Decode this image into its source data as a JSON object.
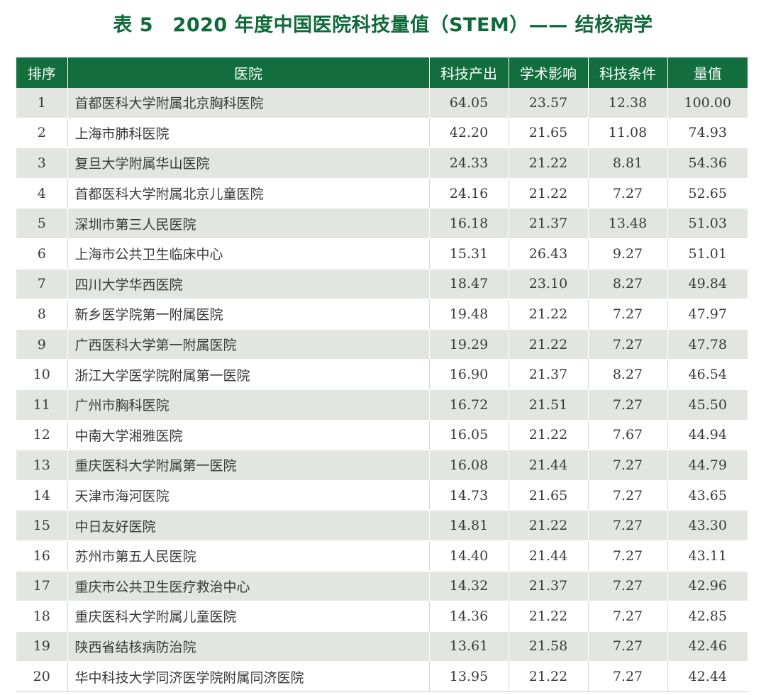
{
  "title": "表 5　2020 年度中国医院科技量值（STEM）—— 结核病学",
  "headers": {
    "rank": "排序",
    "hospital": "医院",
    "output": "科技产出",
    "impact": "学术影响",
    "condition": "科技条件",
    "value": "量值"
  },
  "rows": [
    {
      "rank": "1",
      "hospital": "首都医科大学附属北京胸科医院",
      "output": "64.05",
      "impact": "23.57",
      "condition": "12.38",
      "value": "100.00"
    },
    {
      "rank": "2",
      "hospital": "上海市肺科医院",
      "output": "42.20",
      "impact": "21.65",
      "condition": "11.08",
      "value": "74.93"
    },
    {
      "rank": "3",
      "hospital": "复旦大学附属华山医院",
      "output": "24.33",
      "impact": "21.22",
      "condition": "8.81",
      "value": "54.36"
    },
    {
      "rank": "4",
      "hospital": "首都医科大学附属北京儿童医院",
      "output": "24.16",
      "impact": "21.22",
      "condition": "7.27",
      "value": "52.65"
    },
    {
      "rank": "5",
      "hospital": "深圳市第三人民医院",
      "output": "16.18",
      "impact": "21.37",
      "condition": "13.48",
      "value": "51.03"
    },
    {
      "rank": "6",
      "hospital": "上海市公共卫生临床中心",
      "output": "15.31",
      "impact": "26.43",
      "condition": "9.27",
      "value": "51.01"
    },
    {
      "rank": "7",
      "hospital": "四川大学华西医院",
      "output": "18.47",
      "impact": "23.10",
      "condition": "8.27",
      "value": "49.84"
    },
    {
      "rank": "8",
      "hospital": "新乡医学院第一附属医院",
      "output": "19.48",
      "impact": "21.22",
      "condition": "7.27",
      "value": "47.97"
    },
    {
      "rank": "9",
      "hospital": "广西医科大学第一附属医院",
      "output": "19.29",
      "impact": "21.22",
      "condition": "7.27",
      "value": "47.78"
    },
    {
      "rank": "10",
      "hospital": "浙江大学医学院附属第一医院",
      "output": "16.90",
      "impact": "21.37",
      "condition": "8.27",
      "value": "46.54"
    },
    {
      "rank": "11",
      "hospital": "广州市胸科医院",
      "output": "16.72",
      "impact": "21.51",
      "condition": "7.27",
      "value": "45.50"
    },
    {
      "rank": "12",
      "hospital": "中南大学湘雅医院",
      "output": "16.05",
      "impact": "21.22",
      "condition": "7.67",
      "value": "44.94"
    },
    {
      "rank": "13",
      "hospital": "重庆医科大学附属第一医院",
      "output": "16.08",
      "impact": "21.44",
      "condition": "7.27",
      "value": "44.79"
    },
    {
      "rank": "14",
      "hospital": "天津市海河医院",
      "output": "14.73",
      "impact": "21.65",
      "condition": "7.27",
      "value": "43.65"
    },
    {
      "rank": "15",
      "hospital": "中日友好医院",
      "output": "14.81",
      "impact": "21.22",
      "condition": "7.27",
      "value": "43.30"
    },
    {
      "rank": "16",
      "hospital": "苏州市第五人民医院",
      "output": "14.40",
      "impact": "21.44",
      "condition": "7.27",
      "value": "43.11"
    },
    {
      "rank": "17",
      "hospital": "重庆市公共卫生医疗救治中心",
      "output": "14.32",
      "impact": "21.37",
      "condition": "7.27",
      "value": "42.96"
    },
    {
      "rank": "18",
      "hospital": "重庆医科大学附属儿童医院",
      "output": "14.36",
      "impact": "21.22",
      "condition": "7.27",
      "value": "42.85"
    },
    {
      "rank": "19",
      "hospital": "陕西省结核病防治院",
      "output": "13.61",
      "impact": "21.58",
      "condition": "7.27",
      "value": "42.46"
    },
    {
      "rank": "20",
      "hospital": "华中科技大学同济医学院附属同济医院",
      "output": "13.95",
      "impact": "21.22",
      "condition": "7.27",
      "value": "42.44"
    }
  ],
  "colors": {
    "header_bg": "#126e3c",
    "title": "#0f6a3a",
    "row_stripe": "#e3e6e0"
  }
}
